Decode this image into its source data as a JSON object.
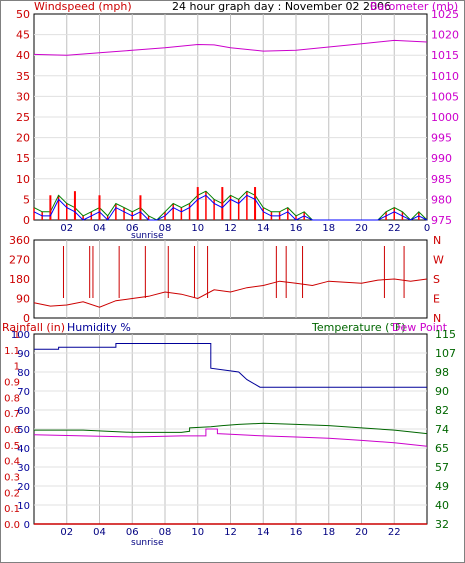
{
  "header": {
    "left_label": "Windspeed (mph)",
    "title": "24 hour graph day : November 02 2006",
    "right_label": "Barometer (mb)"
  },
  "bottom_header": {
    "rain_label": "Rainfall (in)",
    "humidity_label": "Humidity %",
    "temp_label": "Temperature (°F)",
    "dewpoint_label": "Dew Point"
  },
  "sunrise_label": "sunrise",
  "x_ticks": [
    "02",
    "04",
    "06",
    "08",
    "10",
    "12",
    "14",
    "16",
    "18",
    "20",
    "22",
    "0"
  ],
  "x_ticks_bottom": [
    "02",
    "04",
    "06",
    "08",
    "10",
    "12",
    "14",
    "16",
    "18",
    "20",
    "22"
  ],
  "colors": {
    "wind": "#ff0000",
    "wind_avg": "#008000",
    "wind_gust_blue": "#0000ff",
    "barometer": "#cc00cc",
    "direction": "#cc0000",
    "humidity": "#000099",
    "temperature": "#006600",
    "dewpoint": "#cc00cc",
    "rain": "#cc0000",
    "grid": "#c0c0c0",
    "sunlight_band": "#c0c0c0"
  },
  "chart_data": [
    {
      "type": "line",
      "title": "24 hour graph day : November 02 2006",
      "ylabel_left": "Windspeed (mph)",
      "ylabel_right": "Barometer (mb)",
      "y_left_ticks": [
        "50",
        "45",
        "40",
        "35",
        "30",
        "25",
        "20",
        "15",
        "10",
        "5",
        "0"
      ],
      "y_left_range": [
        0,
        50
      ],
      "y_right_ticks": [
        "1025",
        "1020",
        "1015",
        "1010",
        "1005",
        "1000",
        "995",
        "990",
        "985",
        "980",
        "975"
      ],
      "y_right_range": [
        975,
        1025
      ],
      "x_range_hours": [
        0,
        24
      ],
      "series": [
        {
          "name": "Barometer",
          "hours": [
            0,
            2,
            4,
            6,
            8,
            10,
            11,
            12,
            14,
            16,
            18,
            20,
            22,
            24
          ],
          "values": [
            1015.2,
            1015.0,
            1015.6,
            1016.2,
            1016.8,
            1017.6,
            1017.5,
            1016.8,
            1016.0,
            1016.2,
            1017.0,
            1017.8,
            1018.6,
            1018.2
          ]
        },
        {
          "name": "Windspeed",
          "hours": [
            0,
            0.5,
            1,
            1.5,
            2,
            2.5,
            3,
            3.5,
            4,
            4.5,
            5,
            5.5,
            6,
            6.5,
            7,
            7.5,
            8,
            8.5,
            9,
            9.5,
            10,
            10.5,
            11,
            11.5,
            12,
            12.5,
            13,
            13.5,
            14,
            14.5,
            15,
            15.5,
            16,
            16.5,
            17,
            18,
            20,
            21,
            21.5,
            22,
            22.5,
            23,
            23.5,
            24
          ],
          "values": [
            3,
            2,
            2,
            6,
            4,
            3,
            1,
            2,
            3,
            1,
            4,
            3,
            2,
            3,
            1,
            0,
            2,
            4,
            3,
            4,
            6,
            7,
            5,
            4,
            6,
            5,
            7,
            6,
            3,
            2,
            2,
            3,
            1,
            2,
            0,
            0,
            0,
            0,
            2,
            3,
            2,
            0,
            2,
            0
          ]
        },
        {
          "name": "Wind Gust",
          "hours": [
            1,
            2.5,
            4,
            6.5,
            10,
            11.5,
            13.5
          ],
          "values": [
            6,
            7,
            6,
            6,
            8,
            8,
            8
          ]
        }
      ]
    },
    {
      "type": "line",
      "ylabel_left_ticks": [
        "360",
        "270",
        "180",
        "90",
        "0"
      ],
      "y_range": [
        0,
        360
      ],
      "compass_labels": [
        "N",
        "W",
        "S",
        "E",
        "N"
      ],
      "series": [
        {
          "name": "Wind direction",
          "hours": [
            0,
            1,
            2,
            3,
            4,
            5,
            6,
            7,
            8,
            9,
            10,
            11,
            12,
            13,
            14,
            15,
            16,
            17,
            18,
            19,
            20,
            21,
            22,
            23,
            24
          ],
          "values": [
            70,
            55,
            60,
            75,
            50,
            80,
            90,
            100,
            120,
            110,
            90,
            130,
            120,
            140,
            150,
            170,
            160,
            150,
            170,
            165,
            160,
            175,
            180,
            170,
            180
          ]
        }
      ]
    },
    {
      "type": "line",
      "y_left_outer_ticks": [
        "1",
        "1.1",
        "1",
        "0.9",
        "0.8",
        "0.7",
        "0.6",
        "0.5",
        "0.4",
        "0.3",
        "0.2",
        "0.1",
        "0.0"
      ],
      "y_left_inner_ticks": [
        "100",
        "90",
        "80",
        "70",
        "60",
        "50",
        "40",
        "30",
        "20",
        "10",
        "0"
      ],
      "y_right_ticks": [
        "115",
        "107",
        "98",
        "90",
        "82",
        "74",
        "65",
        "57",
        "49",
        "40",
        "32"
      ],
      "humidity_range": [
        0,
        100
      ],
      "temp_range": [
        32,
        115
      ],
      "rain_range": [
        0,
        1.2
      ],
      "series": [
        {
          "name": "Humidity %",
          "hours": [
            0,
            1.5,
            1.5,
            5,
            5,
            9,
            10.8,
            10.8,
            12.5,
            13,
            13.8,
            14,
            24
          ],
          "values": [
            92,
            92,
            93,
            93,
            95,
            95,
            95,
            82,
            80,
            76,
            72,
            72,
            72
          ]
        },
        {
          "name": "Temperature (°F)",
          "hours": [
            0,
            3,
            6,
            9,
            9.5,
            9.5,
            10.8,
            11.5,
            12.5,
            14,
            16,
            18,
            20,
            22,
            24
          ],
          "values": [
            73,
            73,
            72,
            72,
            72.5,
            74,
            74.5,
            75,
            75.5,
            76,
            75.5,
            75,
            74,
            73,
            71.5
          ]
        },
        {
          "name": "Dew Point",
          "hours": [
            0,
            3,
            6,
            9,
            10.5,
            10.5,
            11.2,
            11.2,
            12,
            14,
            16,
            18,
            20,
            22,
            24
          ],
          "values": [
            71,
            70.5,
            70,
            70.5,
            70.5,
            73.5,
            73.5,
            71.5,
            71.2,
            70.5,
            70,
            69.5,
            68.5,
            67.5,
            66
          ]
        },
        {
          "name": "Rainfall (in)",
          "hours": [
            0,
            24
          ],
          "values": [
            0,
            0
          ]
        }
      ]
    }
  ]
}
